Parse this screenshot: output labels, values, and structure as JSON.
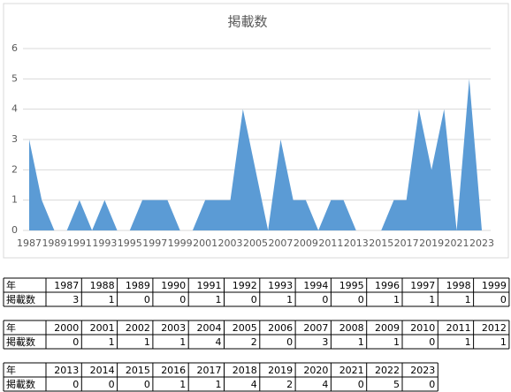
{
  "chart_data": {
    "type": "area",
    "title": "掲載数",
    "categories": [
      1987,
      null,
      1989,
      null,
      1991,
      null,
      1993,
      null,
      1995,
      null,
      1997,
      null,
      1999,
      null,
      2001,
      null,
      2003,
      null,
      2005,
      null,
      2007,
      null,
      2009,
      null,
      2011,
      null,
      2013,
      null,
      2015,
      null,
      2017,
      null,
      2019,
      null,
      2021,
      null,
      2023
    ],
    "values": [
      3,
      1,
      0,
      0,
      1,
      0,
      1,
      0,
      0,
      1,
      1,
      1,
      0,
      0,
      1,
      1,
      1,
      4,
      2,
      0,
      3,
      1,
      1,
      0,
      1,
      1,
      0,
      0,
      0,
      1,
      1,
      4,
      2,
      4,
      0,
      5,
      0
    ],
    "color": "#5b9bd5",
    "ylim": [
      0,
      6
    ],
    "yticks": [
      0,
      1,
      2,
      3,
      4,
      5,
      6
    ],
    "grid": true
  },
  "tables": [
    {
      "header": "年",
      "row_label": "掲載数",
      "years": [
        1987,
        1988,
        1989,
        1990,
        1991,
        1992,
        1993,
        1994,
        1995,
        1996,
        1997,
        1998,
        1999
      ],
      "counts": [
        3,
        1,
        0,
        0,
        1,
        0,
        1,
        0,
        0,
        1,
        1,
        1,
        0
      ]
    },
    {
      "header": "年",
      "row_label": "掲載数",
      "years": [
        2000,
        2001,
        2002,
        2003,
        2004,
        2005,
        2006,
        2007,
        2008,
        2009,
        2010,
        2011,
        2012
      ],
      "counts": [
        0,
        1,
        1,
        1,
        4,
        2,
        0,
        3,
        1,
        1,
        0,
        1,
        1
      ]
    },
    {
      "header": "年",
      "row_label": "掲載数",
      "years": [
        2013,
        2014,
        2015,
        2016,
        2017,
        2018,
        2019,
        2020,
        2021,
        2022,
        2023
      ],
      "counts": [
        0,
        0,
        0,
        1,
        1,
        4,
        2,
        4,
        0,
        5,
        0
      ]
    }
  ]
}
